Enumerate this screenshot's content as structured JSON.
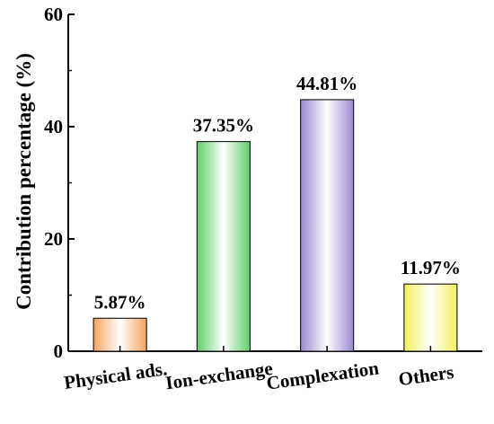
{
  "chart_data": {
    "type": "bar",
    "categories": [
      "Physical ads.",
      "Ion-exchange",
      "Complexation",
      "Others"
    ],
    "values": [
      5.87,
      37.35,
      44.81,
      11.97
    ],
    "data_labels": [
      "5.87%",
      "37.35%",
      "44.81%",
      "11.97%"
    ],
    "ylabel": "Contribution percentage (%)",
    "xlabel": "",
    "title": "",
    "ylim": [
      0,
      60
    ],
    "yticks": [
      0,
      20,
      40,
      60
    ],
    "grid": false,
    "colors": [
      "#f6a35f",
      "#5fcf6a",
      "#9b86cf",
      "#f2f05a"
    ]
  }
}
